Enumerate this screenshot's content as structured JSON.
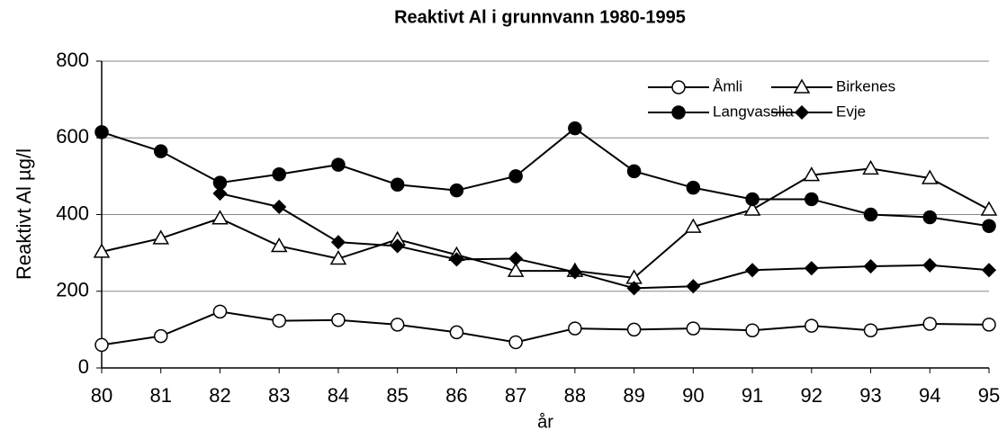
{
  "chart_data": {
    "type": "line",
    "title": "Reaktivt Al i grunnvann 1980-1995",
    "x_label": "år",
    "y_label": "Reaktivt Al µg/l",
    "categories": [
      "80",
      "81",
      "82",
      "83",
      "84",
      "85",
      "86",
      "87",
      "88",
      "89",
      "90",
      "91",
      "92",
      "93",
      "94",
      "95"
    ],
    "series": [
      {
        "name": "Åmli",
        "color": "#000000",
        "marker": "circle",
        "filled": false,
        "values": [
          60,
          83,
          147,
          123,
          125,
          113,
          93,
          67,
          103,
          100,
          103,
          98,
          110,
          98,
          115,
          113
        ]
      },
      {
        "name": "Birkenes",
        "color": "#000000",
        "marker": "triangle",
        "filled": false,
        "values": [
          303,
          338,
          390,
          318,
          285,
          335,
          295,
          253,
          253,
          235,
          368,
          413,
          503,
          520,
          495,
          413
        ]
      },
      {
        "name": "Langvasslia",
        "color": "#000000",
        "marker": "circle",
        "filled": true,
        "values": [
          615,
          565,
          483,
          505,
          530,
          478,
          463,
          500,
          625,
          513,
          470,
          440,
          440,
          400,
          393,
          370
        ]
      },
      {
        "name": "Evje",
        "color": "#000000",
        "marker": "diamond",
        "filled": true,
        "values": [
          null,
          null,
          455,
          420,
          328,
          318,
          283,
          285,
          250,
          208,
          213,
          255,
          260,
          265,
          268,
          255
        ]
      }
    ],
    "ylim": [
      0,
      800
    ],
    "yticks": [
      0,
      200,
      400,
      600,
      800
    ],
    "grid": true,
    "legend": "top-right"
  }
}
